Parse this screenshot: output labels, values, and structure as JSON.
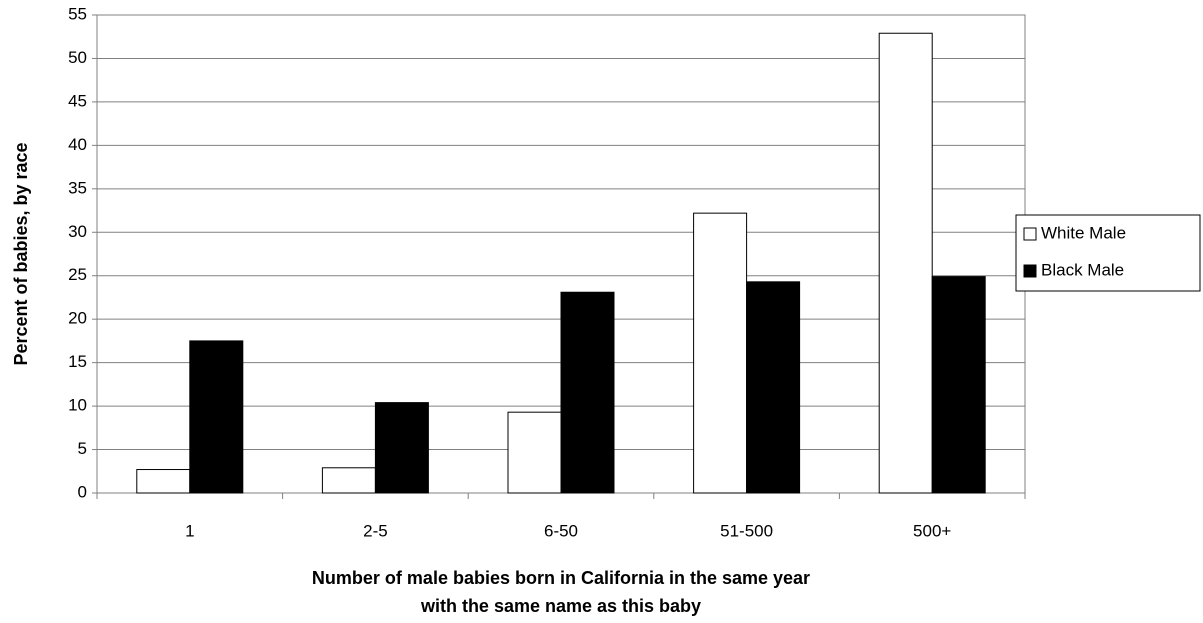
{
  "chart_data": {
    "type": "bar",
    "ylabel": "Percent of babies, by race",
    "xlabel": [
      "Number of male babies born in California in the same year",
      "with the same name as this baby"
    ],
    "categories": [
      "1",
      "2-5",
      "6-50",
      "51-500",
      "500+"
    ],
    "series": [
      {
        "name": "White Male",
        "color": "#ffffff",
        "values": [
          2.7,
          2.9,
          9.3,
          32.2,
          52.9
        ]
      },
      {
        "name": "Black Male",
        "color": "#000000",
        "values": [
          17.5,
          10.4,
          23.1,
          24.3,
          24.9
        ]
      }
    ],
    "ylim": [
      0,
      55
    ],
    "yticks": [
      0,
      5,
      10,
      15,
      20,
      25,
      30,
      35,
      40,
      45,
      50,
      55
    ],
    "grid": true,
    "legend": "right"
  }
}
